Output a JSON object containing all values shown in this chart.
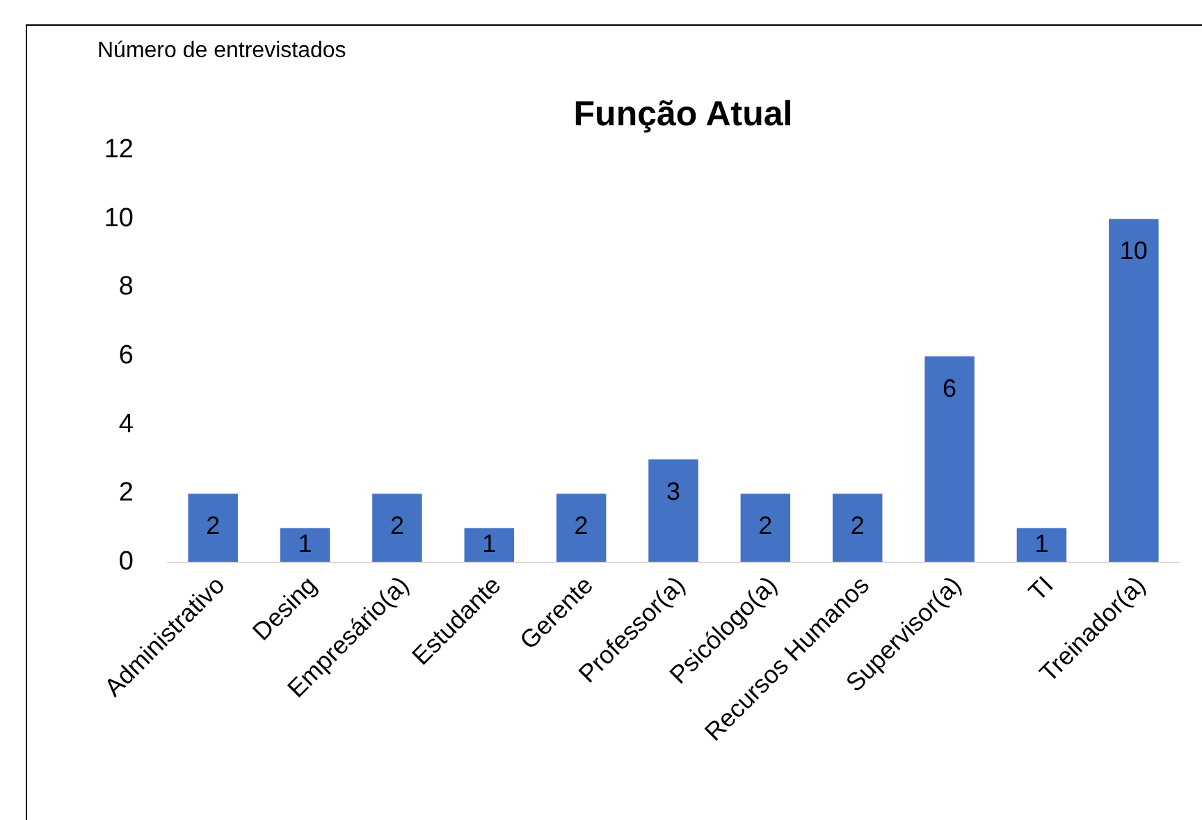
{
  "chart_data": {
    "type": "bar",
    "title": "Função Atual",
    "ylabel": "Número de entrevistados",
    "categories": [
      "Administrativo",
      "Desing",
      "Empresário(a)",
      "Estudante",
      "Gerente",
      "Professor(a)",
      "Psicólogo(a)",
      "Recursos Humanos",
      "Supervisor(a)",
      "TI",
      "Treinador(a)"
    ],
    "values": [
      2,
      1,
      2,
      1,
      2,
      3,
      2,
      2,
      6,
      1,
      10
    ],
    "color": "#4472c4",
    "ylim": [
      0,
      12
    ],
    "yticks": [
      0,
      2,
      4,
      6,
      8,
      10,
      12
    ],
    "grid": false,
    "data_labels": true
  }
}
